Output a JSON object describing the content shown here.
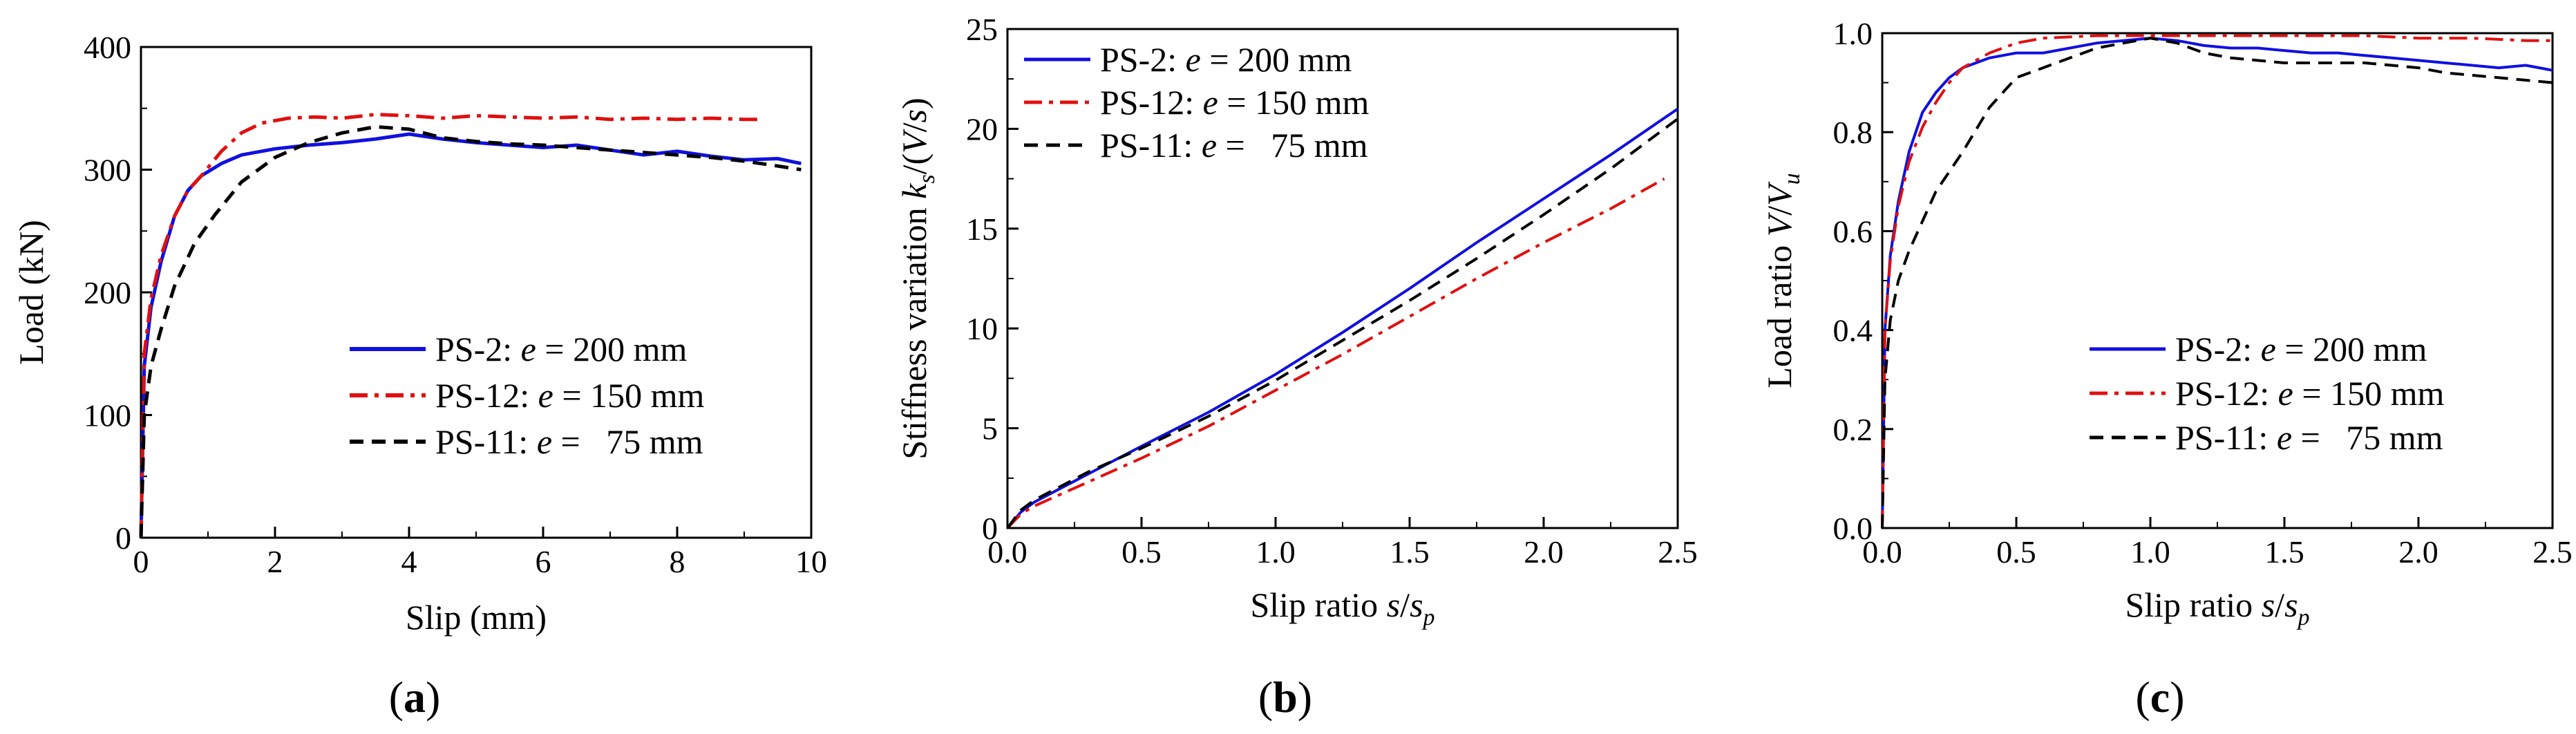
{
  "chart_data": [
    {
      "type": "line",
      "panel_label": "a",
      "xlabel": "Slip (mm)",
      "ylabel": "Load (kN)",
      "xlim": [
        0,
        10
      ],
      "ylim": [
        0,
        400
      ],
      "xticks": [
        "0",
        "2",
        "4",
        "6",
        "8",
        "10"
      ],
      "yticks": [
        "0",
        "100",
        "200",
        "300",
        "400"
      ],
      "legend_position": "bottom-right",
      "series": [
        {
          "name": "PS-2",
          "legend": {
            "prefix": "PS-2:",
            "var": "e",
            "rel": "= 200 mm"
          },
          "color": "#1010e0",
          "dash": "solid",
          "x": [
            0,
            0.05,
            0.15,
            0.3,
            0.5,
            0.7,
            0.9,
            1.2,
            1.5,
            2.0,
            2.5,
            3.0,
            3.5,
            4.0,
            4.5,
            5.0,
            5.5,
            6.0,
            6.5,
            7.0,
            7.5,
            8.0,
            8.5,
            9.0,
            9.5,
            9.85
          ],
          "y": [
            0,
            140,
            188,
            225,
            262,
            283,
            295,
            305,
            312,
            317,
            320,
            322,
            325,
            329,
            325,
            322,
            320,
            318,
            320,
            316,
            312,
            315,
            311,
            308,
            309,
            305
          ]
        },
        {
          "name": "PS-12",
          "legend": {
            "prefix": "PS-12:",
            "var": "e",
            "rel": "= 150 mm"
          },
          "color": "#e01010",
          "dash": "dashdot",
          "x": [
            0,
            0.05,
            0.15,
            0.3,
            0.5,
            0.7,
            0.9,
            1.2,
            1.5,
            1.8,
            2.2,
            2.6,
            3.0,
            3.5,
            4.0,
            4.5,
            5.0,
            5.5,
            6.0,
            6.5,
            7.0,
            7.5,
            8.0,
            8.5,
            9.0,
            9.2
          ],
          "y": [
            0,
            150,
            195,
            230,
            262,
            283,
            295,
            315,
            330,
            338,
            342,
            343,
            342,
            345,
            344,
            342,
            344,
            343,
            342,
            343,
            341,
            342,
            341,
            342,
            341,
            341
          ]
        },
        {
          "name": "PS-11",
          "legend": {
            "prefix": "PS-11:",
            "var": "e",
            "rel": "=   75 mm"
          },
          "color": "#000000",
          "dash": "dash",
          "x": [
            0,
            0.05,
            0.15,
            0.3,
            0.5,
            0.8,
            1.1,
            1.5,
            2.0,
            2.5,
            3.0,
            3.5,
            4.0,
            4.5,
            5.0,
            5.5,
            6.0,
            6.5,
            7.0,
            7.5,
            8.0,
            8.5,
            9.0,
            9.5,
            9.85
          ],
          "y": [
            0,
            100,
            140,
            170,
            205,
            240,
            263,
            290,
            310,
            322,
            330,
            335,
            333,
            326,
            323,
            321,
            320,
            318,
            316,
            314,
            312,
            310,
            307,
            303,
            300
          ]
        }
      ]
    },
    {
      "type": "line",
      "panel_label": "b",
      "xlabel": {
        "prefix": "Slip ratio ",
        "var1": "s",
        "sep": "/",
        "var2": "s",
        "sub": "p"
      },
      "ylabel": {
        "prefix": "Stiffness variation ",
        "var1": "k",
        "sub": "s",
        "open": "/(",
        "var2": "V",
        "sep": "/",
        "var3": "s",
        "close": ")"
      },
      "xlim": [
        0,
        2.5
      ],
      "ylim": [
        0,
        25
      ],
      "xticks": [
        "0.0",
        "0.5",
        "1.0",
        "1.5",
        "2.0",
        "2.5"
      ],
      "yticks": [
        "0",
        "5",
        "10",
        "15",
        "20",
        "25"
      ],
      "legend_position": "top-left",
      "series": [
        {
          "name": "PS-2",
          "legend": {
            "prefix": "PS-2:",
            "var": "e",
            "rel": "= 200 mm"
          },
          "color": "#1010e0",
          "dash": "solid",
          "x": [
            0,
            0.05,
            0.1,
            0.2,
            0.3,
            0.5,
            0.75,
            1.0,
            1.25,
            1.5,
            1.75,
            2.0,
            2.25,
            2.5
          ],
          "y": [
            0,
            0.8,
            1.3,
            2.0,
            2.7,
            4.1,
            5.8,
            7.7,
            9.8,
            12.0,
            14.3,
            16.5,
            18.7,
            21.0
          ]
        },
        {
          "name": "PS-12",
          "legend": {
            "prefix": "PS-12:",
            "var": "e",
            "rel": "= 150 mm"
          },
          "color": "#e01010",
          "dash": "dashdot",
          "x": [
            0,
            0.05,
            0.1,
            0.2,
            0.3,
            0.5,
            0.75,
            1.0,
            1.25,
            1.5,
            1.75,
            2.0,
            2.25,
            2.45
          ],
          "y": [
            0,
            0.7,
            1.1,
            1.7,
            2.3,
            3.5,
            5.1,
            6.9,
            8.7,
            10.6,
            12.5,
            14.3,
            16.0,
            17.5
          ]
        },
        {
          "name": "PS-11",
          "legend": {
            "prefix": "PS-11:",
            "var": "e",
            "rel": "=   75 mm"
          },
          "color": "#000000",
          "dash": "dash",
          "x": [
            0,
            0.05,
            0.1,
            0.2,
            0.3,
            0.5,
            0.75,
            1.0,
            1.25,
            1.5,
            1.75,
            2.0,
            2.25,
            2.5
          ],
          "y": [
            0,
            0.9,
            1.4,
            2.1,
            2.8,
            4.0,
            5.6,
            7.4,
            9.4,
            11.4,
            13.5,
            15.7,
            18.0,
            20.5
          ]
        }
      ]
    },
    {
      "type": "line",
      "panel_label": "c",
      "xlabel": {
        "prefix": "Slip ratio ",
        "var1": "s",
        "sep": "/",
        "var2": "s",
        "sub": "p"
      },
      "ylabel": {
        "prefix": "Load ratio ",
        "var1": "V",
        "sep": "/",
        "var2": "V",
        "sub": "u"
      },
      "xlim": [
        0,
        2.5
      ],
      "ylim": [
        0,
        1.0
      ],
      "xticks": [
        "0.0",
        "0.5",
        "1.0",
        "1.5",
        "2.0",
        "2.5"
      ],
      "yticks": [
        "0.0",
        "0.2",
        "0.4",
        "0.6",
        "0.8",
        "1.0"
      ],
      "legend_position": "bottom-right",
      "series": [
        {
          "name": "PS-2",
          "legend": {
            "prefix": "PS-2:",
            "var": "e",
            "rel": "= 200 mm"
          },
          "color": "#1010e0",
          "dash": "solid",
          "x": [
            0,
            0.01,
            0.03,
            0.06,
            0.1,
            0.15,
            0.2,
            0.25,
            0.3,
            0.4,
            0.5,
            0.6,
            0.7,
            0.8,
            0.9,
            1.0,
            1.1,
            1.2,
            1.3,
            1.4,
            1.5,
            1.6,
            1.7,
            1.8,
            1.9,
            2.0,
            2.1,
            2.2,
            2.3,
            2.4,
            2.5
          ],
          "y": [
            0,
            0.4,
            0.55,
            0.66,
            0.76,
            0.84,
            0.88,
            0.91,
            0.93,
            0.95,
            0.96,
            0.96,
            0.97,
            0.98,
            0.985,
            0.99,
            0.985,
            0.975,
            0.97,
            0.97,
            0.965,
            0.96,
            0.96,
            0.955,
            0.95,
            0.945,
            0.94,
            0.935,
            0.93,
            0.935,
            0.925
          ]
        },
        {
          "name": "PS-12",
          "legend": {
            "prefix": "PS-12:",
            "var": "e",
            "rel": "= 150 mm"
          },
          "color": "#e01010",
          "dash": "dashdot",
          "x": [
            0,
            0.01,
            0.03,
            0.06,
            0.1,
            0.15,
            0.2,
            0.25,
            0.3,
            0.4,
            0.5,
            0.6,
            0.8,
            1.0,
            1.2,
            1.4,
            1.6,
            1.8,
            2.0,
            2.2,
            2.4,
            2.5
          ],
          "y": [
            0,
            0.4,
            0.54,
            0.65,
            0.74,
            0.81,
            0.86,
            0.9,
            0.93,
            0.96,
            0.98,
            0.99,
            0.995,
            0.995,
            0.995,
            0.995,
            0.995,
            0.995,
            0.99,
            0.99,
            0.985,
            0.985
          ]
        },
        {
          "name": "PS-11",
          "legend": {
            "prefix": "PS-11:",
            "var": "e",
            "rel": "=   75 mm"
          },
          "color": "#000000",
          "dash": "dash",
          "x": [
            0,
            0.01,
            0.03,
            0.06,
            0.1,
            0.15,
            0.2,
            0.3,
            0.4,
            0.5,
            0.6,
            0.7,
            0.8,
            0.9,
            1.0,
            1.1,
            1.2,
            1.3,
            1.4,
            1.5,
            1.6,
            1.7,
            1.8,
            1.9,
            2.0,
            2.1,
            2.2,
            2.3,
            2.4,
            2.5
          ],
          "y": [
            0,
            0.3,
            0.42,
            0.5,
            0.56,
            0.62,
            0.68,
            0.76,
            0.85,
            0.91,
            0.93,
            0.95,
            0.97,
            0.98,
            0.99,
            0.98,
            0.96,
            0.95,
            0.945,
            0.94,
            0.94,
            0.94,
            0.94,
            0.935,
            0.93,
            0.92,
            0.915,
            0.91,
            0.905,
            0.9
          ]
        }
      ]
    }
  ]
}
